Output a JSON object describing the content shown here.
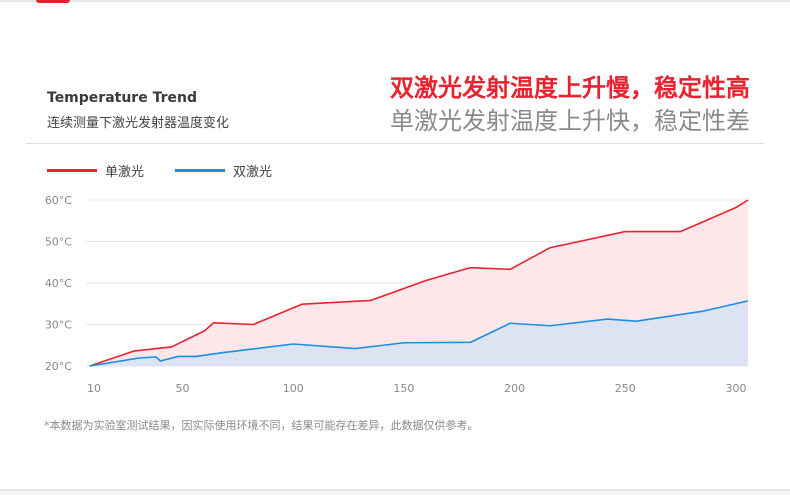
{
  "header": {
    "title_en": "Temperature Trend",
    "subtitle_cn": "连续测量下激光发射器温度变化",
    "headline_red": "双激光发射温度上升慢，稳定性高",
    "headline_gray": "单激光发射温度上升快，稳定性差"
  },
  "footnote": "*本数据为实验室测试结果，因实际使用环境不同，结果可能存在差异，此数据仅供参考。",
  "colors": {
    "accent_red": "#e8232f",
    "accent_blue": "#1a8fe0",
    "red_fill": "#fde7ea",
    "blue_fill": "#dce4f3",
    "grid": "#e6e6e6"
  },
  "chart_data": {
    "type": "area",
    "legend_position": "top-left",
    "grid": true,
    "xlim": [
      10,
      305
    ],
    "ylim": [
      20,
      60
    ],
    "x_ticks": [
      10,
      50,
      100,
      150,
      200,
      250,
      300
    ],
    "x_tick_labels": [
      "10",
      "50",
      "100",
      "150",
      "200",
      "250",
      "300"
    ],
    "y_ticks": [
      20,
      30,
      40,
      50,
      60
    ],
    "y_tick_labels": [
      "20°C",
      "30°C",
      "40°C",
      "50°C",
      "60°C"
    ],
    "series": [
      {
        "name": "单激光",
        "color": "#e8232f",
        "x": [
          8,
          28,
          45,
          60,
          64,
          82,
          104,
          135,
          160,
          180,
          198,
          216,
          250,
          275,
          300,
          310
        ],
        "y": [
          20,
          23.6,
          24.6,
          28.5,
          30.4,
          30,
          34.9,
          35.8,
          40.6,
          43.7,
          43.3,
          48.5,
          52.4,
          52.4,
          58.2,
          60
        ]
      },
      {
        "name": "双激光",
        "color": "#1a8fe0",
        "x": [
          8,
          30,
          38,
          40,
          48,
          56,
          68,
          100,
          128,
          150,
          180,
          198,
          216,
          242,
          255,
          285,
          310
        ],
        "y": [
          20,
          21.9,
          22.2,
          21.2,
          22.3,
          22.3,
          23.2,
          25.3,
          24.2,
          25.6,
          25.7,
          30.3,
          29.7,
          31.3,
          30.8,
          33.2,
          35.7
        ]
      }
    ]
  }
}
